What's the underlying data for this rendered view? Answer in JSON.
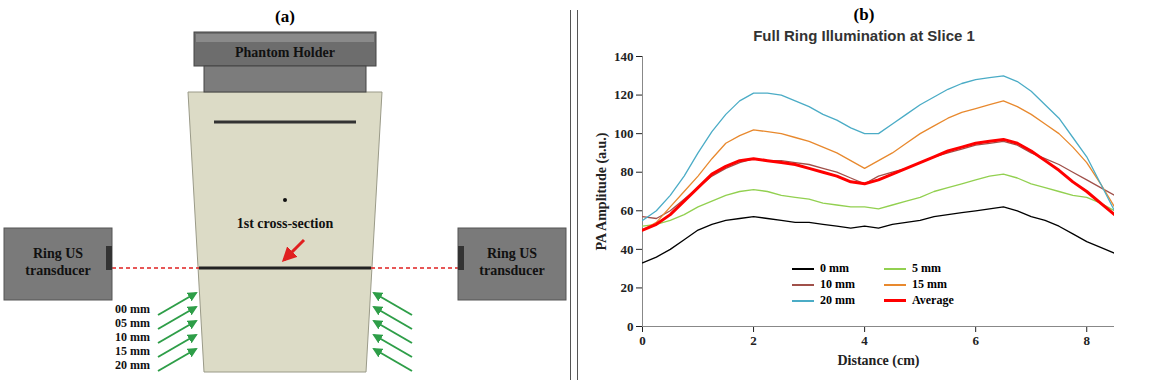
{
  "diagram": {
    "panel_label": "(a)",
    "holder": "Phantom Holder",
    "cross_section": "1st cross-section",
    "transducers": [
      "Ring US transducer",
      "Ring US transducer"
    ],
    "depths": [
      "00 mm",
      "05 mm",
      "10 mm",
      "15 mm",
      "20 mm"
    ]
  },
  "chart_data": {
    "panel_label": "(b)",
    "type": "line",
    "title": "Full Ring Illumination at Slice 1",
    "x_label": "Distance (cm)",
    "y_label": "PA Amplitude (a.u.)",
    "x": [
      0,
      0.25,
      0.5,
      0.75,
      1,
      1.25,
      1.5,
      1.75,
      2,
      2.25,
      2.5,
      2.75,
      3,
      3.25,
      3.5,
      3.75,
      4,
      4.25,
      4.5,
      4.75,
      5,
      5.25,
      5.5,
      5.75,
      6,
      6.25,
      6.5,
      6.75,
      7,
      7.25,
      7.5,
      7.75,
      8,
      8.25,
      8.5
    ],
    "xlim": [
      0,
      8.5
    ],
    "xticks": [
      0,
      2,
      4,
      6,
      8
    ],
    "ylim": [
      0,
      140
    ],
    "yticks": [
      0,
      20,
      40,
      60,
      80,
      100,
      120,
      140
    ],
    "grid": false,
    "legend": "bottom",
    "series": [
      {
        "name": "0 mm",
        "color": "#000000",
        "values": [
          33,
          36,
          40,
          45,
          50,
          53,
          55,
          56,
          57,
          56,
          55,
          54,
          54,
          53,
          52,
          51,
          52,
          51,
          53,
          54,
          55,
          57,
          58,
          59,
          60,
          61,
          62,
          60,
          57,
          55,
          52,
          48,
          44,
          41,
          38
        ]
      },
      {
        "name": "5 mm",
        "color": "#92d050",
        "values": [
          52,
          53,
          55,
          58,
          62,
          65,
          68,
          70,
          71,
          70,
          68,
          67,
          66,
          64,
          63,
          62,
          62,
          61,
          63,
          65,
          67,
          70,
          72,
          74,
          76,
          78,
          79,
          77,
          74,
          72,
          70,
          68,
          67,
          64,
          60
        ]
      },
      {
        "name": "10 mm",
        "color": "#a0504a",
        "values": [
          57,
          56,
          60,
          66,
          72,
          78,
          82,
          85,
          87,
          86,
          86,
          85,
          84,
          82,
          80,
          77,
          74,
          78,
          80,
          82,
          85,
          88,
          90,
          92,
          94,
          95,
          96,
          94,
          90,
          87,
          84,
          80,
          76,
          72,
          68
        ]
      },
      {
        "name": "15 mm",
        "color": "#e8892e",
        "values": [
          50,
          54,
          62,
          70,
          78,
          87,
          95,
          99,
          102,
          101,
          100,
          98,
          96,
          93,
          90,
          86,
          82,
          86,
          90,
          95,
          100,
          104,
          108,
          111,
          113,
          115,
          117,
          114,
          110,
          105,
          100,
          93,
          85,
          74,
          62
        ]
      },
      {
        "name": "20 mm",
        "color": "#4bacc6",
        "values": [
          55,
          60,
          68,
          78,
          90,
          101,
          110,
          117,
          121,
          121,
          120,
          117,
          114,
          110,
          107,
          103,
          100,
          100,
          105,
          110,
          115,
          119,
          123,
          126,
          128,
          129,
          130,
          127,
          122,
          115,
          108,
          98,
          88,
          74,
          60
        ]
      },
      {
        "name": "Average",
        "color": "#ff0000",
        "line_style": "thick",
        "values": [
          50,
          53,
          58,
          65,
          72,
          79,
          83,
          86,
          87,
          86,
          85,
          84,
          82,
          80,
          78,
          75,
          74,
          76,
          79,
          82,
          85,
          88,
          91,
          93,
          95,
          96,
          97,
          95,
          91,
          86,
          81,
          75,
          70,
          64,
          58
        ]
      }
    ]
  }
}
